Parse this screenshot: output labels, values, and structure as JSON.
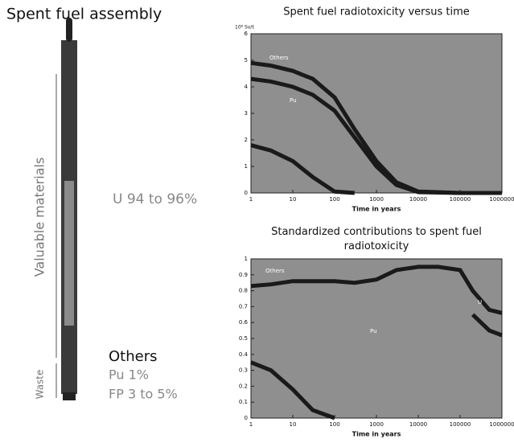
{
  "diagram": {
    "title": "Spent fuel assembly",
    "left_label": "Valuable materials",
    "waste_label": "Waste",
    "u_label": "U 94 to 96%",
    "others_label": "Others",
    "pu_label": "Pu 1%",
    "fp_label": "FP 3 to 5%"
  },
  "chart_data": [
    {
      "type": "line",
      "title": "Spent fuel radiotoxicity versus time",
      "ylabel": "10⁸ Sv/t",
      "xlabel": "Time in years",
      "xscale": "log",
      "xlim": [
        1,
        1000000
      ],
      "xticks": [
        1,
        10,
        100,
        1000,
        10000,
        100000,
        1000000
      ],
      "ylim": [
        0,
        6
      ],
      "yticks": [
        0,
        1,
        2,
        3,
        4,
        5,
        6
      ],
      "annotations": [
        "Others",
        "Pu"
      ],
      "x": [
        1,
        3,
        10,
        30,
        100,
        300,
        1000,
        3000,
        10000,
        100000,
        1000000
      ],
      "series": [
        {
          "color": "#1a1a1a",
          "values": [
            4.9,
            4.8,
            4.6,
            4.3,
            3.6,
            2.4,
            1.2,
            0.4,
            0.05,
            0,
            0
          ]
        },
        {
          "color": "#1a1a1a",
          "values": [
            4.3,
            4.2,
            4.0,
            3.7,
            3.1,
            2.1,
            1.0,
            0.3,
            0.03,
            0,
            0
          ]
        },
        {
          "color": "#1a1a1a",
          "values": [
            1.8,
            1.6,
            1.2,
            0.6,
            0.05,
            0,
            null,
            null,
            null,
            null,
            null
          ]
        }
      ]
    },
    {
      "type": "line",
      "title": "Standardized contributions to spent fuel radiotoxicity",
      "xlabel": "Time in years",
      "xscale": "log",
      "xlim": [
        1,
        1000000
      ],
      "xticks": [
        1,
        10,
        100,
        1000,
        10000,
        100000,
        1000000
      ],
      "ylim": [
        0,
        1
      ],
      "yticks": [
        0,
        0.1,
        0.2,
        0.3,
        0.4,
        0.5,
        0.6,
        0.7,
        0.8,
        0.9,
        1
      ],
      "annotations": [
        "Others",
        "Pu",
        "U"
      ],
      "x": [
        1,
        3,
        10,
        30,
        100,
        300,
        1000,
        3000,
        10000,
        30000,
        100000,
        200000,
        500000,
        1000000
      ],
      "series": [
        {
          "color": "#1a1a1a",
          "values": [
            0.83,
            0.84,
            0.86,
            0.86,
            0.86,
            0.85,
            0.87,
            0.93,
            0.95,
            0.95,
            0.93,
            0.8,
            0.68,
            0.66
          ]
        },
        {
          "color": "#1a1a1a",
          "values": [
            0.35,
            0.3,
            0.18,
            0.05,
            0,
            null,
            null,
            null,
            null,
            null,
            null,
            null,
            null,
            null
          ]
        },
        {
          "color": "#1a1a1a",
          "values": [
            null,
            null,
            null,
            null,
            null,
            null,
            null,
            null,
            null,
            null,
            null,
            0.65,
            0.55,
            0.52
          ]
        }
      ]
    }
  ]
}
